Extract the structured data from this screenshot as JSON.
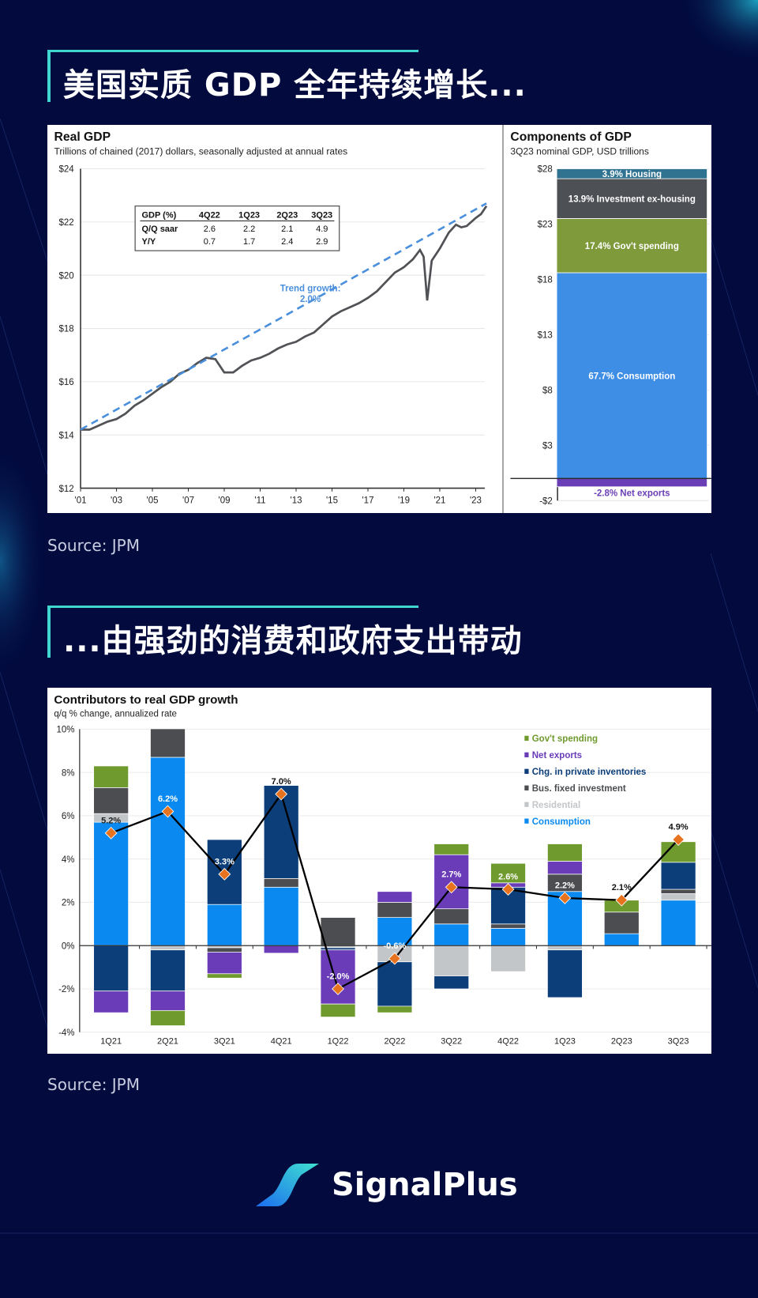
{
  "section1": {
    "title": "美国实质 GDP 全年持续增长...",
    "source": "Source: JPM"
  },
  "section2": {
    "title": "...由强劲的消费和政府支出带动",
    "source": "Source: JPM"
  },
  "brand": {
    "name": "SignalPlus"
  },
  "colors": {
    "background": "#020a3e",
    "accent": "#3fd6d0"
  },
  "chart_data": [
    {
      "type": "line",
      "title": "Real GDP",
      "subtitle": "Trillions of chained (2017) dollars, seasonally adjusted at annual rates",
      "ylim": [
        12,
        24
      ],
      "yticks": [
        "$12",
        "$14",
        "$16",
        "$18",
        "$20",
        "$22",
        "$24"
      ],
      "xticks": [
        "'01",
        "'03",
        "'05",
        "'07",
        "'09",
        "'11",
        "'13",
        "'15",
        "'17",
        "'19",
        "'21",
        "'23"
      ],
      "grid": true,
      "series": [
        {
          "points": [
            [
              2001,
              14.2
            ],
            [
              2001.5,
              14.2
            ],
            [
              2002,
              14.35
            ],
            [
              2002.5,
              14.5
            ],
            [
              2003,
              14.6
            ],
            [
              2003.5,
              14.8
            ],
            [
              2004,
              15.1
            ],
            [
              2004.5,
              15.3
            ],
            [
              2005,
              15.55
            ],
            [
              2005.5,
              15.8
            ],
            [
              2006,
              16.0
            ],
            [
              2006.5,
              16.3
            ],
            [
              2007,
              16.45
            ],
            [
              2007.5,
              16.7
            ],
            [
              2008,
              16.9
            ],
            [
              2008.5,
              16.85
            ],
            [
              2009,
              16.35
            ],
            [
              2009.5,
              16.35
            ],
            [
              2010,
              16.6
            ],
            [
              2010.5,
              16.8
            ],
            [
              2011,
              16.9
            ],
            [
              2011.5,
              17.05
            ],
            [
              2012,
              17.25
            ],
            [
              2012.5,
              17.4
            ],
            [
              2013,
              17.5
            ],
            [
              2013.5,
              17.7
            ],
            [
              2014,
              17.85
            ],
            [
              2014.5,
              18.15
            ],
            [
              2015,
              18.45
            ],
            [
              2015.5,
              18.65
            ],
            [
              2016,
              18.8
            ],
            [
              2016.5,
              18.95
            ],
            [
              2017,
              19.15
            ],
            [
              2017.5,
              19.4
            ],
            [
              2018,
              19.75
            ],
            [
              2018.5,
              20.1
            ],
            [
              2019,
              20.3
            ],
            [
              2019.5,
              20.6
            ],
            [
              2019.9,
              20.95
            ],
            [
              2020.1,
              20.7
            ],
            [
              2020.3,
              19.05
            ],
            [
              2020.55,
              20.55
            ],
            [
              2021,
              21.0
            ],
            [
              2021.5,
              21.6
            ],
            [
              2021.9,
              21.9
            ],
            [
              2022.2,
              21.8
            ],
            [
              2022.5,
              21.85
            ],
            [
              2023,
              22.15
            ],
            [
              2023.3,
              22.3
            ],
            [
              2023.6,
              22.6
            ]
          ],
          "color": "#505256"
        },
        {
          "name": "Trend growth: 2.0%",
          "points": [
            [
              2001,
              14.2
            ],
            [
              2023.6,
              22.7
            ]
          ],
          "color": "#4a8fdc",
          "dashed": true
        }
      ],
      "annotation": [
        "Trend growth:",
        "2.0%"
      ],
      "table": {
        "headers": [
          "GDP (%)",
          "4Q22",
          "1Q23",
          "2Q23",
          "3Q23"
        ],
        "rows": [
          [
            "Q/Q saar",
            "2.6",
            "2.2",
            "2.1",
            "4.9"
          ],
          [
            "Y/Y",
            "0.7",
            "1.7",
            "2.4",
            "2.9"
          ]
        ]
      }
    },
    {
      "type": "bar",
      "title": "Components of GDP",
      "subtitle": "3Q23 nominal GDP, USD trillions",
      "ylim": [
        -2,
        28
      ],
      "yticks": [
        "-$2",
        "$3",
        "$8",
        "$13",
        "$18",
        "$23",
        "$28"
      ],
      "segments": [
        {
          "label": "-2.8% Net exports",
          "from": 0,
          "to": -0.75,
          "color": "#6a3fb5",
          "label_color": "#6a3fb5"
        },
        {
          "label": "67.7% Consumption",
          "from": 0,
          "to": 18.6,
          "color": "#3f8ee6",
          "label_color": "#ffffff"
        },
        {
          "label": "17.4% Gov't spending",
          "from": 18.6,
          "to": 23.5,
          "color": "#7e9a3b",
          "label_color": "#ffffff"
        },
        {
          "label": "13.9% Investment ex-housing",
          "from": 23.5,
          "to": 27.1,
          "color": "#4d5054",
          "label_color": "#ffffff"
        },
        {
          "label": "3.9% Housing",
          "from": 27.1,
          "to": 28.0,
          "color": "#2f7390",
          "label_color": "#ffffff"
        }
      ]
    },
    {
      "type": "bar",
      "stacked": true,
      "title": "Contributors to real GDP growth",
      "subtitle": "q/q % change, annualized rate",
      "ylim": [
        -4,
        10
      ],
      "yticks": [
        "-4%",
        "-2%",
        "0%",
        "2%",
        "4%",
        "6%",
        "8%",
        "10%"
      ],
      "categories": [
        "1Q21",
        "2Q21",
        "3Q21",
        "4Q21",
        "1Q22",
        "2Q22",
        "3Q22",
        "4Q22",
        "1Q23",
        "2Q23",
        "3Q23"
      ],
      "legend_position": "top-right",
      "series": [
        {
          "name": "Consumption",
          "color": "#0a8af0",
          "values": [
            5.7,
            8.7,
            1.9,
            2.7,
            0,
            1.3,
            1.0,
            0.8,
            2.5,
            0.55,
            2.1
          ]
        },
        {
          "name": "Residential",
          "color": "#c3c6c9",
          "values": [
            0.4,
            -0.2,
            -0.1,
            0,
            -0.1,
            -0.75,
            -1.4,
            -1.2,
            -0.2,
            -0.05,
            0.3
          ]
        },
        {
          "name": "Bus. fixed investment",
          "color": "#4b4d50",
          "values": [
            1.2,
            1.4,
            -0.2,
            0.4,
            1.3,
            0.7,
            0.7,
            0.2,
            0.8,
            1.0,
            0.2
          ]
        },
        {
          "name": "Chg. in private inventories",
          "color": "#0c3e7a",
          "values": [
            -2.1,
            -1.9,
            3.0,
            4.3,
            -0.1,
            -2.05,
            -0.6,
            1.7,
            -2.2,
            0,
            1.25
          ]
        },
        {
          "name": "Net exports",
          "color": "#6a3cb8",
          "values": [
            -1.0,
            -0.9,
            -1.0,
            -0.35,
            -2.5,
            0.5,
            2.5,
            0.2,
            0.6,
            0,
            0
          ]
        },
        {
          "name": "Gov't spending",
          "color": "#6e9a2e",
          "values": [
            1.0,
            -0.7,
            -0.2,
            0,
            -0.6,
            -0.3,
            0.5,
            0.9,
            0.8,
            0.55,
            0.95
          ]
        }
      ],
      "total": {
        "values": [
          5.2,
          6.2,
          3.3,
          7.0,
          -2.0,
          -0.6,
          2.7,
          2.6,
          2.2,
          2.1,
          4.9
        ],
        "labels": [
          "5.2%",
          "6.2%",
          "3.3%",
          "7.0%",
          "-2.0%",
          "-0.6%",
          "2.7%",
          "2.6%",
          "2.2%",
          "2.1%",
          "4.9%"
        ],
        "label_colors": [
          "#222222",
          "#ffffff",
          "#ffffff",
          "#111111",
          "#ffffff",
          "#ffffff",
          "#ffffff",
          "#ffffff",
          "#ffffff",
          "#111111",
          "#111111"
        ],
        "marker_color": "#e8731e",
        "line_color": "#000000"
      }
    }
  ]
}
